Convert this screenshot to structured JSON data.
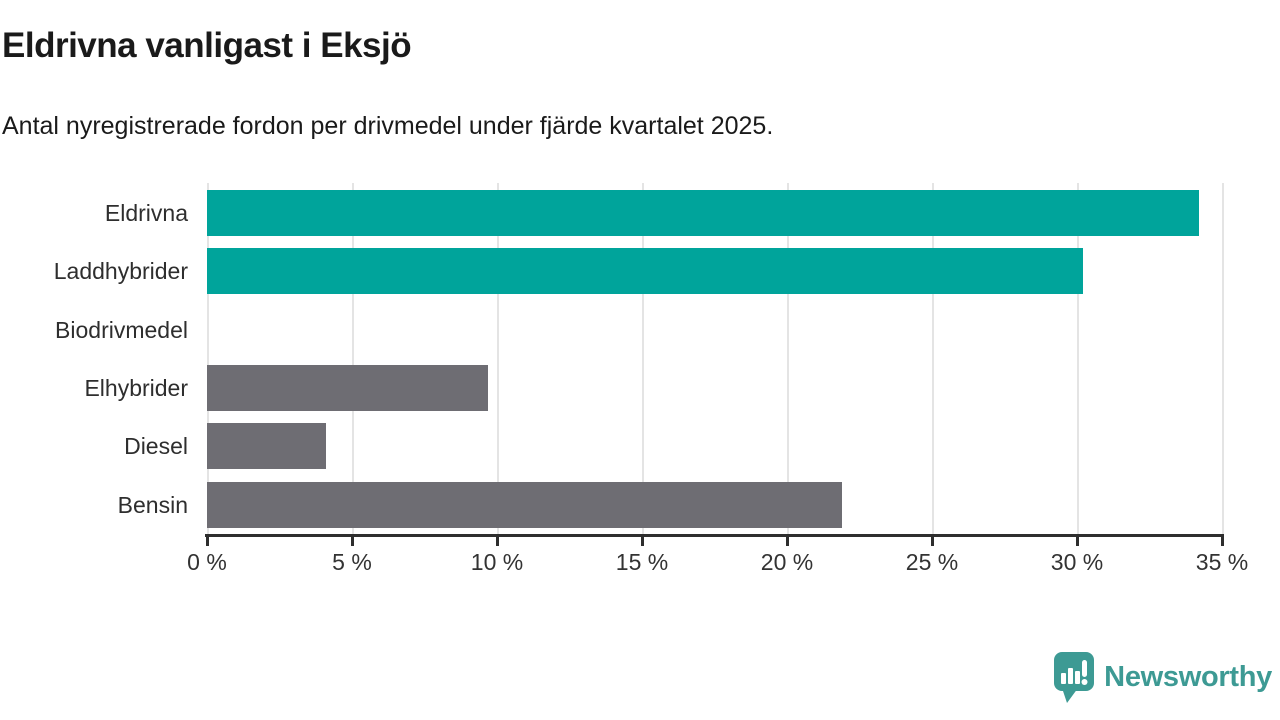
{
  "title": "Eldrivna vanligast i Eksjö",
  "subtitle": "Antal nyregistrerade fordon per drivmedel under fjärde kvartalet 2025.",
  "colors": {
    "highlight_teal": "#00a49b",
    "bar_gray": "#6e6d73",
    "axis": "#2e2e2e",
    "grid": "#e4e4e4",
    "logo_teal": "#3d9a94"
  },
  "chart_data": {
    "type": "bar",
    "orientation": "horizontal",
    "title": "Eldrivna vanligast i Eksjö",
    "subtitle": "Antal nyregistrerade fordon per drivmedel under fjärde kvartalet 2025.",
    "categories": [
      "Eldrivna",
      "Laddhybrider",
      "Biodrivmedel",
      "Elhybrider",
      "Diesel",
      "Bensin"
    ],
    "values": [
      34.2,
      30.2,
      0,
      9.7,
      4.1,
      21.9
    ],
    "unit": "%",
    "bar_colors": [
      "#00a49b",
      "#00a49b",
      "#6e6d73",
      "#6e6d73",
      "#6e6d73",
      "#6e6d73"
    ],
    "xlim": [
      0,
      35
    ],
    "x_ticks": [
      "0 %",
      "5 %",
      "10 %",
      "15 %",
      "20 %",
      "25 %",
      "30 %",
      "35 %"
    ],
    "grid": true,
    "legend": "none"
  },
  "branding": {
    "logo_text": "Newsworthy",
    "logo_icon": "speech-bubble-bar-chart-icon"
  }
}
